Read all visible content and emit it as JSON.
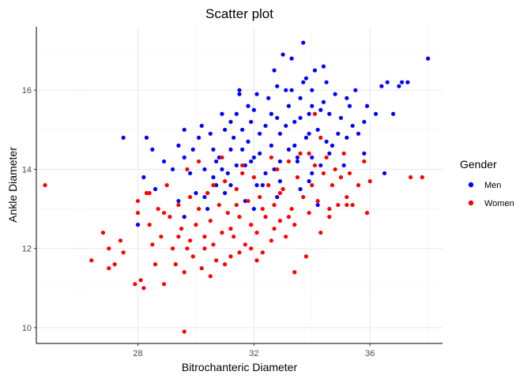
{
  "chart_data": {
    "type": "scatter",
    "title": "Scatter plot",
    "xlabel": "Bitrochanteric Diameter",
    "ylabel": "Ankle Diameter",
    "xlim": [
      24.5,
      38.5
    ],
    "ylim": [
      9.6,
      17.6
    ],
    "x_ticks": [
      28,
      32,
      36
    ],
    "y_ticks": [
      10,
      12,
      14,
      16
    ],
    "x_minor": [
      26,
      30,
      34,
      38
    ],
    "y_minor": [
      11,
      13,
      15,
      17
    ],
    "grid": true,
    "legend_title": "Gender",
    "legend_position": "right",
    "series": [
      {
        "name": "Men",
        "color": "#0000ff",
        "points": [
          [
            27.5,
            14.8
          ],
          [
            28.0,
            12.6
          ],
          [
            28.2,
            13.8
          ],
          [
            28.3,
            14.8
          ],
          [
            28.5,
            14.5
          ],
          [
            28.6,
            13.5
          ],
          [
            28.9,
            14.2
          ],
          [
            29.2,
            14.0
          ],
          [
            29.4,
            14.6
          ],
          [
            29.4,
            13.2
          ],
          [
            29.6,
            15.0
          ],
          [
            29.6,
            14.3
          ],
          [
            29.6,
            12.8
          ],
          [
            29.8,
            13.9
          ],
          [
            30.1,
            14.8
          ],
          [
            30.2,
            15.1
          ],
          [
            30.3,
            14.0
          ],
          [
            30.4,
            13.0
          ],
          [
            30.6,
            14.5
          ],
          [
            30.7,
            14.2
          ],
          [
            30.7,
            13.6
          ],
          [
            30.8,
            14.3
          ],
          [
            30.9,
            14.0
          ],
          [
            31.0,
            13.4
          ],
          [
            31.2,
            15.2
          ],
          [
            31.2,
            14.5
          ],
          [
            31.4,
            15.4
          ],
          [
            31.4,
            14.1
          ],
          [
            31.5,
            16.0
          ],
          [
            31.6,
            15.0
          ],
          [
            31.6,
            14.5
          ],
          [
            31.7,
            13.2
          ],
          [
            31.8,
            15.6
          ],
          [
            31.8,
            14.7
          ],
          [
            31.9,
            14.2
          ],
          [
            32.0,
            15.5
          ],
          [
            32.0,
            14.3
          ],
          [
            32.0,
            13.0
          ],
          [
            32.1,
            15.9
          ],
          [
            32.2,
            14.9
          ],
          [
            32.3,
            13.6
          ],
          [
            32.4,
            15.1
          ],
          [
            32.5,
            15.8
          ],
          [
            32.6,
            14.6
          ],
          [
            32.7,
            14.0
          ],
          [
            32.7,
            16.5
          ],
          [
            32.8,
            15.3
          ],
          [
            32.8,
            13.3
          ],
          [
            32.9,
            14.9
          ],
          [
            33.0,
            16.9
          ],
          [
            33.1,
            16.0
          ],
          [
            33.2,
            15.6
          ],
          [
            33.2,
            14.5
          ],
          [
            33.3,
            16.8
          ],
          [
            33.4,
            15.2
          ],
          [
            33.5,
            14.3
          ],
          [
            33.6,
            15.8
          ],
          [
            33.6,
            13.5
          ],
          [
            33.7,
            17.2
          ],
          [
            33.7,
            16.2
          ],
          [
            33.8,
            14.8
          ],
          [
            33.9,
            15.4
          ],
          [
            34.0,
            16.0
          ],
          [
            34.0,
            13.9
          ],
          [
            34.1,
            16.5
          ],
          [
            34.2,
            15.0
          ],
          [
            34.3,
            14.1
          ],
          [
            34.4,
            15.7
          ],
          [
            34.5,
            16.2
          ],
          [
            34.6,
            15.4
          ],
          [
            34.7,
            14.6
          ],
          [
            34.8,
            15.9
          ],
          [
            35.0,
            15.3
          ],
          [
            35.2,
            14.8
          ],
          [
            35.3,
            15.6
          ],
          [
            35.5,
            16.0
          ],
          [
            35.6,
            14.9
          ],
          [
            35.8,
            15.2
          ],
          [
            35.9,
            15.6
          ],
          [
            36.2,
            15.4
          ],
          [
            36.4,
            16.1
          ],
          [
            36.6,
            16.2
          ],
          [
            36.8,
            15.4
          ],
          [
            37.0,
            16.1
          ],
          [
            37.1,
            16.2
          ],
          [
            37.3,
            16.2
          ],
          [
            36.5,
            13.9
          ],
          [
            38.0,
            16.8
          ],
          [
            29.9,
            14.5
          ],
          [
            30.5,
            14.9
          ],
          [
            30.9,
            15.4
          ],
          [
            31.3,
            14.8
          ],
          [
            32.2,
            14.4
          ],
          [
            32.9,
            14.2
          ],
          [
            33.4,
            14.6
          ],
          [
            33.9,
            14.9
          ],
          [
            34.3,
            15.5
          ],
          [
            34.9,
            14.9
          ],
          [
            31.0,
            15.0
          ],
          [
            31.9,
            15.2
          ],
          [
            32.6,
            15.4
          ],
          [
            33.1,
            15.1
          ],
          [
            33.6,
            15.3
          ],
          [
            34.0,
            15.6
          ],
          [
            30.0,
            13.4
          ],
          [
            30.6,
            13.8
          ],
          [
            31.1,
            13.9
          ],
          [
            31.7,
            14.1
          ],
          [
            32.4,
            13.9
          ],
          [
            32.9,
            13.7
          ],
          [
            33.5,
            14.2
          ],
          [
            34.0,
            14.3
          ],
          [
            34.5,
            14.7
          ],
          [
            35.1,
            14.1
          ],
          [
            35.4,
            15.1
          ],
          [
            35.8,
            14.4
          ],
          [
            31.5,
            15.9
          ],
          [
            32.8,
            16.1
          ],
          [
            33.3,
            16.0
          ],
          [
            33.8,
            16.3
          ],
          [
            34.4,
            16.6
          ],
          [
            34.6,
            14.4
          ],
          [
            35.2,
            15.8
          ],
          [
            32.1,
            13.6
          ],
          [
            31.2,
            13.6
          ],
          [
            30.3,
            13.3
          ],
          [
            33.9,
            13.7
          ],
          [
            34.2,
            13.1
          ]
        ]
      },
      {
        "name": "Women",
        "color": "#ff0000",
        "points": [
          [
            24.8,
            13.6
          ],
          [
            26.4,
            11.7
          ],
          [
            26.8,
            12.4
          ],
          [
            27.0,
            12.0
          ],
          [
            27.0,
            11.5
          ],
          [
            27.2,
            11.6
          ],
          [
            27.4,
            12.2
          ],
          [
            27.5,
            11.9
          ],
          [
            27.9,
            11.1
          ],
          [
            28.0,
            13.2
          ],
          [
            28.0,
            12.9
          ],
          [
            28.1,
            11.2
          ],
          [
            28.2,
            11.0
          ],
          [
            28.3,
            13.4
          ],
          [
            28.4,
            12.6
          ],
          [
            28.5,
            12.1
          ],
          [
            28.6,
            11.6
          ],
          [
            28.7,
            13.0
          ],
          [
            28.8,
            12.3
          ],
          [
            28.9,
            11.1
          ],
          [
            29.0,
            13.6
          ],
          [
            29.1,
            12.8
          ],
          [
            29.2,
            12.0
          ],
          [
            29.3,
            11.6
          ],
          [
            29.4,
            13.1
          ],
          [
            29.5,
            12.5
          ],
          [
            29.6,
            11.4
          ],
          [
            29.6,
            9.9
          ],
          [
            29.7,
            12.0
          ],
          [
            29.8,
            13.3
          ],
          [
            29.9,
            11.8
          ],
          [
            30.0,
            12.6
          ],
          [
            30.1,
            13.0
          ],
          [
            30.2,
            11.5
          ],
          [
            30.3,
            12.3
          ],
          [
            30.4,
            13.4
          ],
          [
            30.5,
            12.7
          ],
          [
            30.6,
            12.1
          ],
          [
            30.7,
            11.7
          ],
          [
            30.8,
            13.1
          ],
          [
            30.9,
            12.4
          ],
          [
            31.0,
            13.7
          ],
          [
            31.1,
            12.9
          ],
          [
            31.2,
            11.8
          ],
          [
            31.3,
            12.3
          ],
          [
            31.4,
            13.5
          ],
          [
            31.5,
            12.8
          ],
          [
            31.6,
            13.9
          ],
          [
            31.7,
            12.1
          ],
          [
            31.8,
            13.2
          ],
          [
            31.9,
            12.6
          ],
          [
            32.0,
            13.8
          ],
          [
            32.1,
            12.4
          ],
          [
            32.2,
            13.3
          ],
          [
            32.3,
            11.9
          ],
          [
            32.4,
            12.8
          ],
          [
            32.5,
            13.6
          ],
          [
            32.6,
            12.2
          ],
          [
            32.7,
            13.1
          ],
          [
            32.8,
            14.0
          ],
          [
            32.9,
            12.7
          ],
          [
            33.0,
            13.5
          ],
          [
            33.1,
            12.3
          ],
          [
            33.2,
            14.2
          ],
          [
            33.3,
            13.0
          ],
          [
            33.4,
            12.6
          ],
          [
            33.5,
            13.8
          ],
          [
            33.6,
            14.4
          ],
          [
            33.7,
            13.3
          ],
          [
            33.8,
            11.8
          ],
          [
            33.9,
            12.9
          ],
          [
            34.0,
            13.6
          ],
          [
            34.1,
            14.1
          ],
          [
            34.2,
            13.2
          ],
          [
            34.3,
            12.4
          ],
          [
            34.4,
            13.9
          ],
          [
            34.5,
            14.3
          ],
          [
            34.6,
            13.0
          ],
          [
            34.7,
            13.6
          ],
          [
            34.8,
            14.0
          ],
          [
            34.9,
            13.1
          ],
          [
            35.0,
            13.8
          ],
          [
            35.1,
            14.4
          ],
          [
            35.2,
            13.3
          ],
          [
            35.3,
            13.9
          ],
          [
            35.4,
            13.1
          ],
          [
            35.6,
            13.6
          ],
          [
            35.8,
            14.2
          ],
          [
            35.9,
            12.9
          ],
          [
            36.0,
            13.7
          ],
          [
            37.4,
            13.8
          ],
          [
            37.8,
            13.8
          ],
          [
            31.5,
            11.9
          ],
          [
            32.1,
            11.7
          ],
          [
            29.8,
            12.2
          ],
          [
            30.5,
            11.3
          ],
          [
            31.0,
            11.6
          ],
          [
            33.4,
            11.4
          ],
          [
            30.1,
            14.2
          ],
          [
            29.7,
            14.0
          ],
          [
            30.9,
            14.3
          ],
          [
            31.6,
            14.1
          ],
          [
            32.6,
            14.3
          ],
          [
            33.9,
            14.4
          ],
          [
            34.1,
            15.4
          ],
          [
            34.3,
            14.8
          ],
          [
            28.4,
            13.4
          ],
          [
            28.9,
            12.9
          ],
          [
            29.4,
            12.3
          ],
          [
            30.3,
            12.0
          ],
          [
            31.2,
            12.5
          ],
          [
            31.9,
            12.0
          ],
          [
            32.7,
            12.5
          ],
          [
            33.2,
            12.8
          ],
          [
            34.6,
            12.8
          ],
          [
            35.2,
            13.1
          ],
          [
            30.6,
            13.6
          ],
          [
            31.4,
            13.1
          ],
          [
            32.3,
            13.0
          ],
          [
            32.9,
            13.4
          ]
        ]
      }
    ]
  }
}
